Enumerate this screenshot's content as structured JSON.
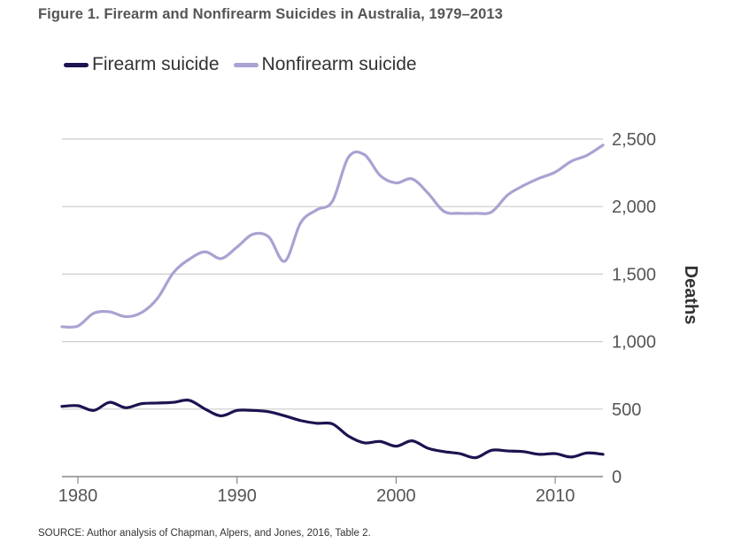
{
  "title": "Figure 1. Firearm and Nonfirearm Suicides in Australia, 1979–2013",
  "source": "SOURCE: Author analysis of Chapman, Alpers, and Jones, 2016, Table 2.",
  "colors": {
    "firearm": "#1e1250",
    "nonfirearm": "#a9a2d2",
    "grid": "#cccccc",
    "axis": "#888888"
  },
  "chart_data": {
    "type": "line",
    "title": "Figure 1. Firearm and Nonfirearm Suicides in Australia, 1979–2013",
    "xlabel": "",
    "ylabel": "Deaths",
    "xlim": [
      1979,
      2013
    ],
    "ylim": [
      0,
      2500
    ],
    "x_ticks": [
      1980,
      1990,
      2000,
      2010
    ],
    "x_tick_labels": [
      "1980",
      "1990",
      "2000",
      "2010"
    ],
    "y_ticks": [
      0,
      500,
      1000,
      1500,
      2000,
      2500
    ],
    "y_tick_labels": [
      "0",
      "500",
      "1,000",
      "1,500",
      "2,000",
      "2,500"
    ],
    "grid": true,
    "legend": "top-left",
    "x": [
      1979,
      1980,
      1981,
      1982,
      1983,
      1984,
      1985,
      1986,
      1987,
      1988,
      1989,
      1990,
      1991,
      1992,
      1993,
      1994,
      1995,
      1996,
      1997,
      1998,
      1999,
      2000,
      2001,
      2002,
      2003,
      2004,
      2005,
      2006,
      2007,
      2008,
      2009,
      2010,
      2011,
      2012,
      2013
    ],
    "series": [
      {
        "name": "Firearm suicide",
        "values": [
          520,
          525,
          490,
          550,
          510,
          540,
          545,
          550,
          565,
          500,
          450,
          490,
          490,
          480,
          450,
          415,
          395,
          390,
          300,
          250,
          260,
          225,
          265,
          210,
          185,
          170,
          140,
          195,
          190,
          185,
          165,
          170,
          145,
          175,
          165
        ]
      },
      {
        "name": "Nonfirearm suicide",
        "values": [
          1110,
          1115,
          1210,
          1220,
          1185,
          1215,
          1320,
          1510,
          1610,
          1665,
          1615,
          1700,
          1795,
          1775,
          1595,
          1880,
          1975,
          2040,
          2365,
          2385,
          2230,
          2175,
          2205,
          2100,
          1965,
          1950,
          1950,
          1960,
          2085,
          2155,
          2210,
          2255,
          2335,
          2380,
          2455
        ]
      }
    ]
  }
}
